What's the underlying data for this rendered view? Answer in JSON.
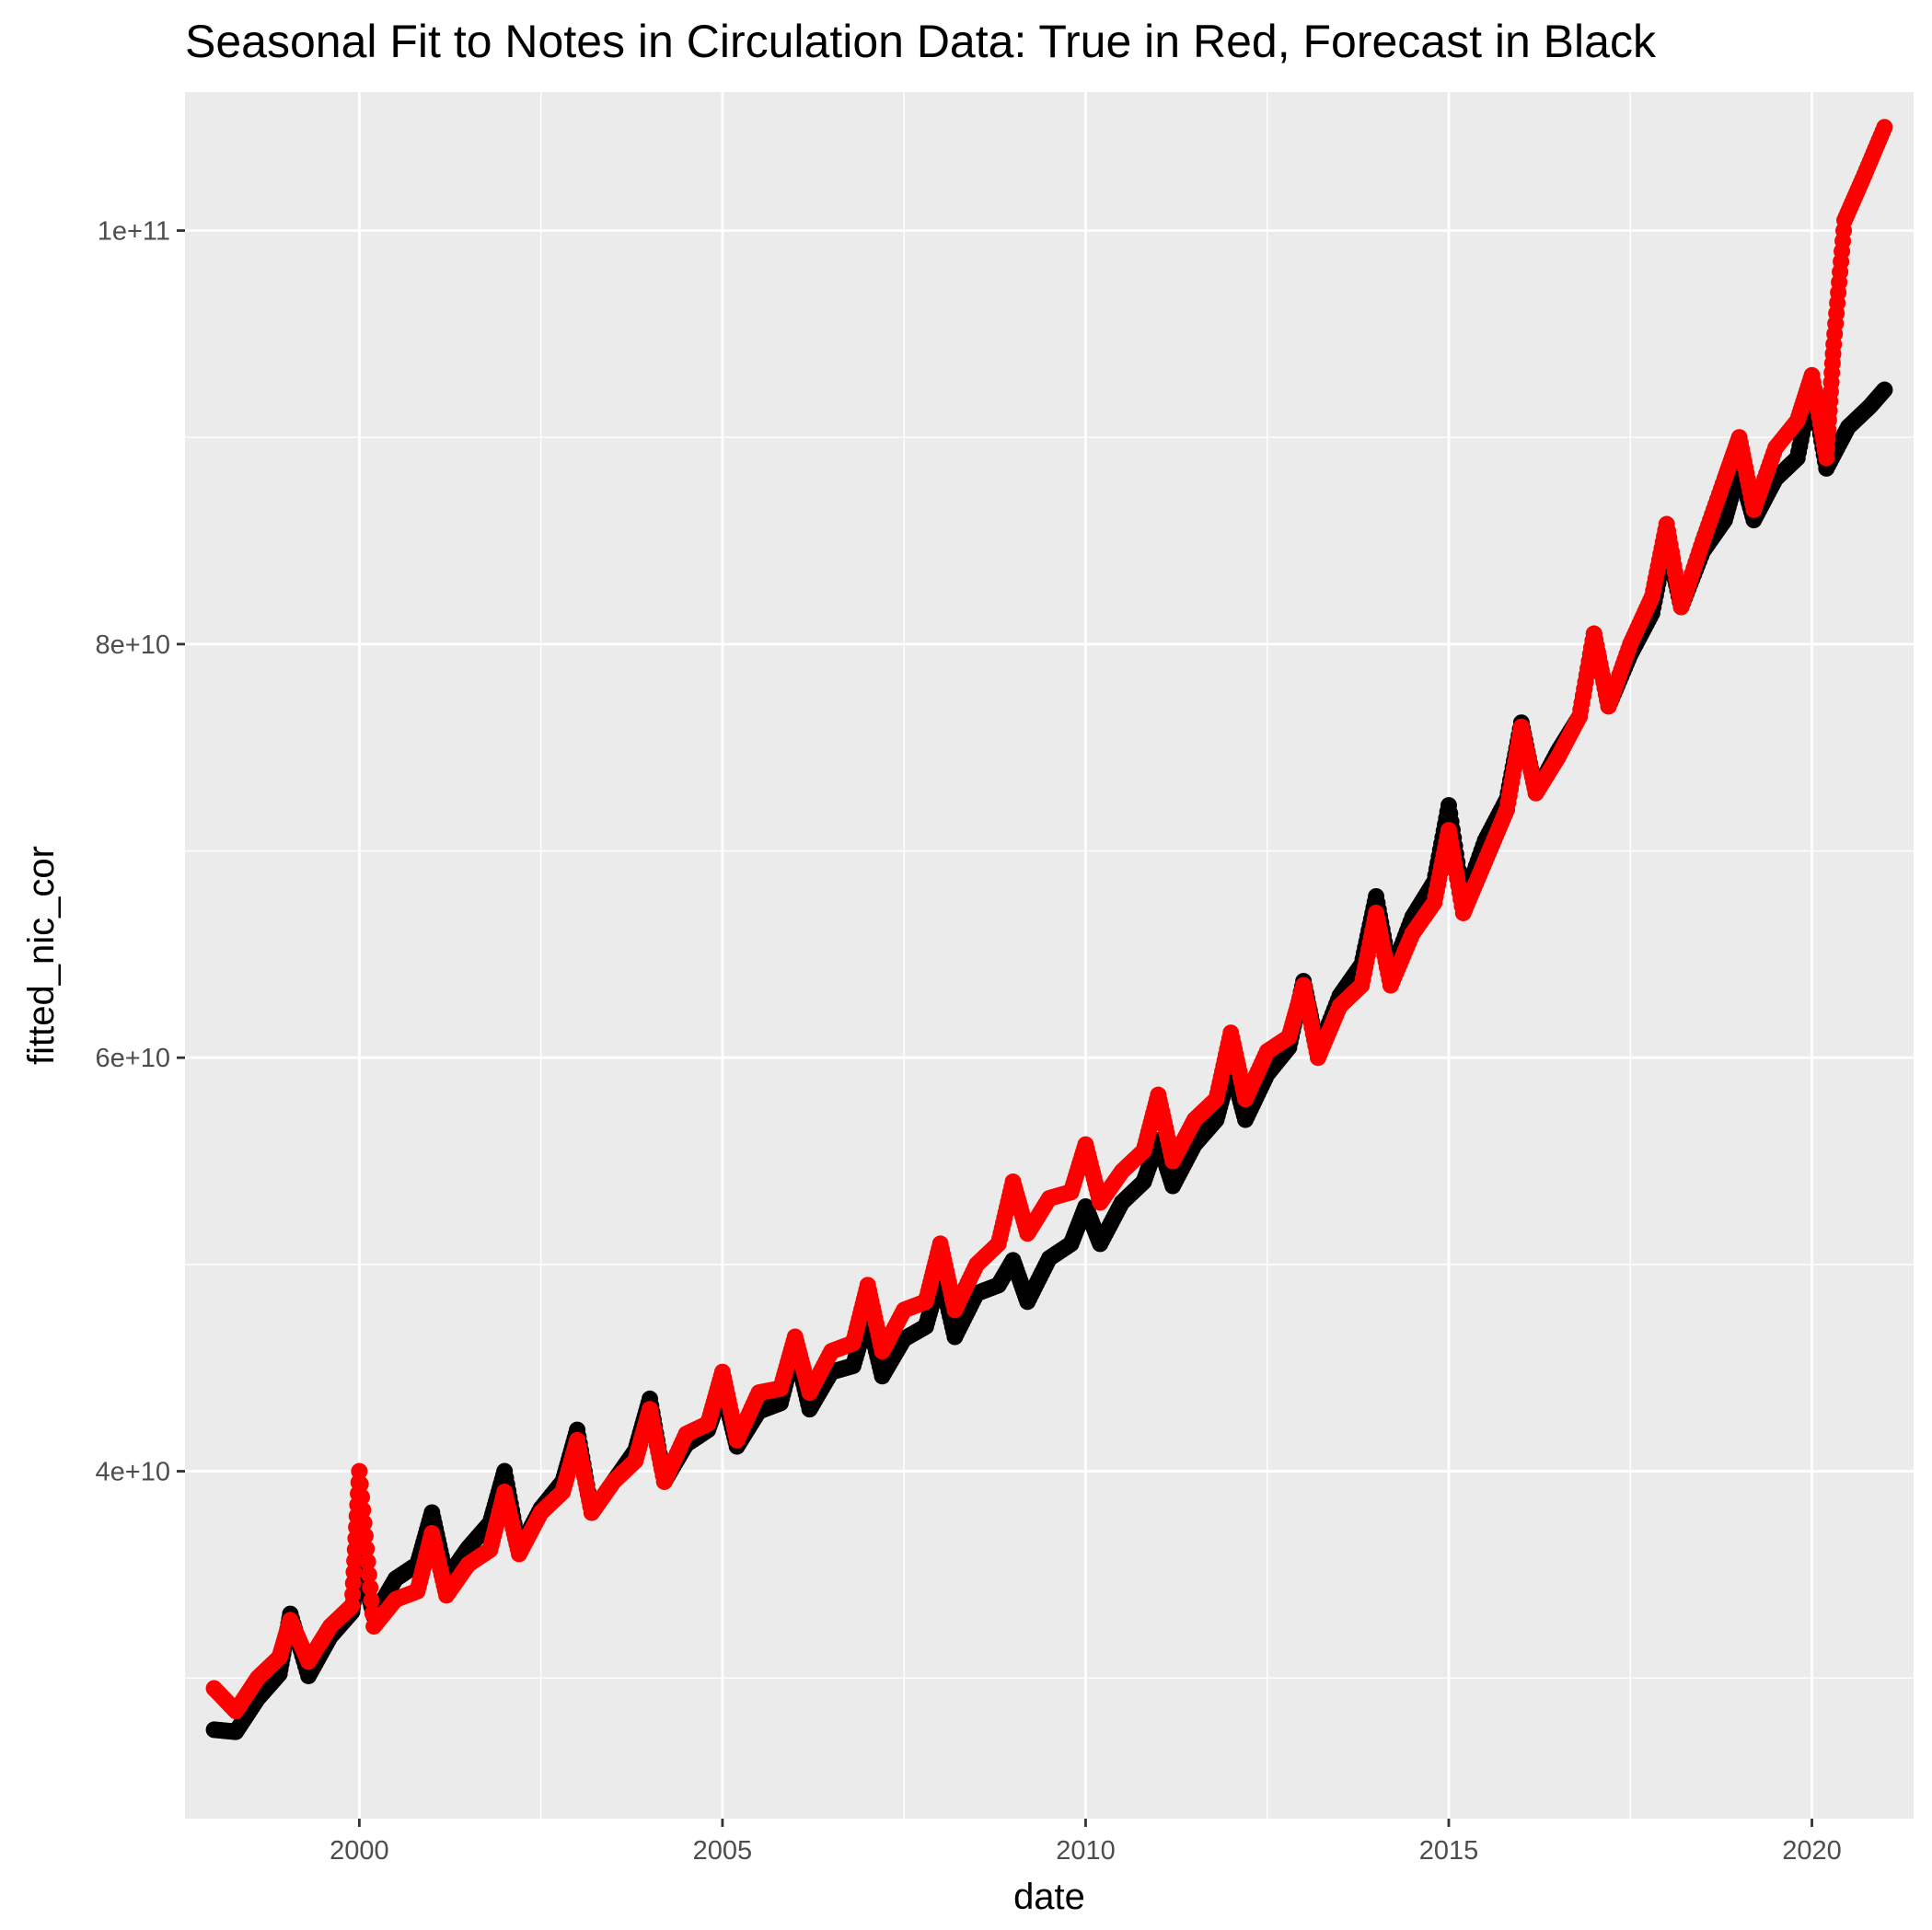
{
  "chart_data": {
    "type": "scatter",
    "title": "Seasonal Fit to Notes in Circulation Data: True in Red, Forecast in Black",
    "xlabel": "date",
    "ylabel": "fitted_nic_cor",
    "x_tick_labels": [
      "2000",
      "2005",
      "2010",
      "2015",
      "2020"
    ],
    "x_ticks": [
      2000,
      2005,
      2010,
      2015,
      2020
    ],
    "y_tick_labels": [
      "4e+10",
      "6e+10",
      "8e+10",
      "1e+11"
    ],
    "y_ticks": [
      40000000000,
      60000000000,
      80000000000,
      100000000000
    ],
    "xlim": [
      1997.6,
      2021.4
    ],
    "ylim": [
      23200000000,
      106700000000
    ],
    "grid": true,
    "legend": "none",
    "background_color": "#ebebeb",
    "grid_color": "#ffffff",
    "series": [
      {
        "color": "#000000",
        "points": [
          [
            1998.0,
            27500000000.0
          ],
          [
            1998.3,
            27400000000.0
          ],
          [
            1998.6,
            29000000000.0
          ],
          [
            1998.9,
            30200000000.0
          ],
          [
            1999.05,
            33100000000.0
          ],
          [
            1999.3,
            30100000000.0
          ],
          [
            1999.6,
            32000000000.0
          ],
          [
            1999.9,
            33200000000.0
          ],
          [
            2000.0,
            35800000000.0
          ],
          [
            2000.2,
            33000000000.0
          ],
          [
            2000.5,
            34800000000.0
          ],
          [
            2000.8,
            35500000000.0
          ],
          [
            2001.0,
            38000000000.0
          ],
          [
            2001.2,
            34800000000.0
          ],
          [
            2001.5,
            36300000000.0
          ],
          [
            2001.8,
            37500000000.0
          ],
          [
            2002.0,
            40000000000.0
          ],
          [
            2002.2,
            36200000000.0
          ],
          [
            2002.5,
            38200000000.0
          ],
          [
            2002.8,
            39500000000.0
          ],
          [
            2003.0,
            42000000000.0
          ],
          [
            2003.2,
            38000000000.0
          ],
          [
            2003.5,
            39500000000.0
          ],
          [
            2003.8,
            41000000000.0
          ],
          [
            2004.0,
            43500000000.0
          ],
          [
            2004.2,
            39500000000.0
          ],
          [
            2004.5,
            41300000000.0
          ],
          [
            2004.8,
            42000000000.0
          ],
          [
            2005.0,
            44000000000.0
          ],
          [
            2005.2,
            41200000000.0
          ],
          [
            2005.5,
            42900000000.0
          ],
          [
            2005.8,
            43300000000.0
          ],
          [
            2006.0,
            46000000000.0
          ],
          [
            2006.2,
            43000000000.0
          ],
          [
            2006.5,
            44800000000.0
          ],
          [
            2006.8,
            45100000000.0
          ],
          [
            2007.0,
            47500000000.0
          ],
          [
            2007.2,
            44600000000.0
          ],
          [
            2007.5,
            46400000000.0
          ],
          [
            2007.8,
            47000000000.0
          ],
          [
            2008.0,
            49500000000.0
          ],
          [
            2008.2,
            46500000000.0
          ],
          [
            2008.5,
            48600000000.0
          ],
          [
            2008.8,
            49000000000.0
          ],
          [
            2009.0,
            50200000000.0
          ],
          [
            2009.2,
            48200000000.0
          ],
          [
            2009.5,
            50300000000.0
          ],
          [
            2009.8,
            51000000000.0
          ],
          [
            2010.0,
            52800000000.0
          ],
          [
            2010.2,
            51000000000.0
          ],
          [
            2010.5,
            53000000000.0
          ],
          [
            2010.8,
            54000000000.0
          ],
          [
            2011.0,
            56000000000.0
          ],
          [
            2011.2,
            53800000000.0
          ],
          [
            2011.5,
            55800000000.0
          ],
          [
            2011.8,
            57000000000.0
          ],
          [
            2012.0,
            59600000000.0
          ],
          [
            2012.2,
            57000000000.0
          ],
          [
            2012.5,
            59200000000.0
          ],
          [
            2012.8,
            60500000000.0
          ],
          [
            2013.0,
            63700000000.0
          ],
          [
            2013.2,
            60300000000.0
          ],
          [
            2013.5,
            63000000000.0
          ],
          [
            2013.8,
            64500000000.0
          ],
          [
            2014.0,
            67800000000.0
          ],
          [
            2014.2,
            64000000000.0
          ],
          [
            2014.5,
            66800000000.0
          ],
          [
            2014.8,
            68500000000.0
          ],
          [
            2015.0,
            72200000000.0
          ],
          [
            2015.2,
            67500000000.0
          ],
          [
            2015.5,
            70500000000.0
          ],
          [
            2015.8,
            72500000000.0
          ],
          [
            2016.0,
            76200000000.0
          ],
          [
            2016.2,
            72800000000.0
          ],
          [
            2016.5,
            74800000000.0
          ],
          [
            2016.8,
            76500000000.0
          ],
          [
            2017.0,
            80500000000.0
          ],
          [
            2017.2,
            77000000000.0
          ],
          [
            2017.5,
            79500000000.0
          ],
          [
            2017.8,
            81500000000.0
          ],
          [
            2018.0,
            85000000000.0
          ],
          [
            2018.2,
            81800000000.0
          ],
          [
            2018.5,
            84500000000.0
          ],
          [
            2018.8,
            86000000000.0
          ],
          [
            2019.0,
            88500000000.0
          ],
          [
            2019.2,
            86000000000.0
          ],
          [
            2019.5,
            88000000000.0
          ],
          [
            2019.8,
            89000000000.0
          ],
          [
            2020.0,
            92500000000.0
          ],
          [
            2020.2,
            88500000000.0
          ],
          [
            2020.5,
            90500000000.0
          ],
          [
            2020.8,
            91500000000.0
          ],
          [
            2021.0,
            92300000000.0
          ]
        ]
      },
      {
        "color": "#ff0000",
        "points": [
          [
            1998.0,
            29500000000.0
          ],
          [
            1998.3,
            28400000000.0
          ],
          [
            1998.6,
            30000000000.0
          ],
          [
            1998.9,
            31000000000.0
          ],
          [
            1999.05,
            32800000000.0
          ],
          [
            1999.3,
            30800000000.0
          ],
          [
            1999.6,
            32500000000.0
          ],
          [
            1999.9,
            33500000000.0
          ],
          [
            2000.0,
            40000000000.0
          ],
          [
            2000.2,
            32500000000.0
          ],
          [
            2000.5,
            33800000000.0
          ],
          [
            2000.8,
            34200000000.0
          ],
          [
            2001.0,
            37000000000.0
          ],
          [
            2001.2,
            34000000000.0
          ],
          [
            2001.5,
            35500000000.0
          ],
          [
            2001.8,
            36200000000.0
          ],
          [
            2002.0,
            39000000000.0
          ],
          [
            2002.2,
            36000000000.0
          ],
          [
            2002.5,
            38000000000.0
          ],
          [
            2002.8,
            39000000000.0
          ],
          [
            2003.0,
            41500000000.0
          ],
          [
            2003.2,
            38000000000.0
          ],
          [
            2003.5,
            39500000000.0
          ],
          [
            2003.8,
            40500000000.0
          ],
          [
            2004.0,
            43000000000.0
          ],
          [
            2004.2,
            39500000000.0
          ],
          [
            2004.5,
            41800000000.0
          ],
          [
            2004.8,
            42300000000.0
          ],
          [
            2005.0,
            44800000000.0
          ],
          [
            2005.2,
            41500000000.0
          ],
          [
            2005.5,
            43800000000.0
          ],
          [
            2005.8,
            44000000000.0
          ],
          [
            2006.0,
            46500000000.0
          ],
          [
            2006.2,
            43800000000.0
          ],
          [
            2006.5,
            45800000000.0
          ],
          [
            2006.8,
            46200000000.0
          ],
          [
            2007.0,
            49000000000.0
          ],
          [
            2007.2,
            45800000000.0
          ],
          [
            2007.5,
            47800000000.0
          ],
          [
            2007.8,
            48200000000.0
          ],
          [
            2008.0,
            51000000000.0
          ],
          [
            2008.2,
            47800000000.0
          ],
          [
            2008.5,
            50000000000.0
          ],
          [
            2008.8,
            51000000000.0
          ],
          [
            2009.0,
            54000000000.0
          ],
          [
            2009.2,
            51500000000.0
          ],
          [
            2009.5,
            53200000000.0
          ],
          [
            2009.8,
            53500000000.0
          ],
          [
            2010.0,
            55800000000.0
          ],
          [
            2010.2,
            53000000000.0
          ],
          [
            2010.5,
            54500000000.0
          ],
          [
            2010.8,
            55500000000.0
          ],
          [
            2011.0,
            58200000000.0
          ],
          [
            2011.2,
            55000000000.0
          ],
          [
            2011.5,
            57000000000.0
          ],
          [
            2011.8,
            58000000000.0
          ],
          [
            2012.0,
            61200000000.0
          ],
          [
            2012.2,
            58000000000.0
          ],
          [
            2012.5,
            60300000000.0
          ],
          [
            2012.8,
            61000000000.0
          ],
          [
            2013.0,
            63500000000.0
          ],
          [
            2013.2,
            60000000000.0
          ],
          [
            2013.5,
            62500000000.0
          ],
          [
            2013.8,
            63500000000.0
          ],
          [
            2014.0,
            67000000000.0
          ],
          [
            2014.2,
            63500000000.0
          ],
          [
            2014.5,
            66000000000.0
          ],
          [
            2014.8,
            67500000000.0
          ],
          [
            2015.0,
            71000000000.0
          ],
          [
            2015.2,
            67000000000.0
          ],
          [
            2015.5,
            69500000000.0
          ],
          [
            2015.8,
            72000000000.0
          ],
          [
            2016.0,
            76000000000.0
          ],
          [
            2016.2,
            72800000000.0
          ],
          [
            2016.5,
            74500000000.0
          ],
          [
            2016.8,
            76500000000.0
          ],
          [
            2017.0,
            80500000000.0
          ],
          [
            2017.2,
            77000000000.0
          ],
          [
            2017.5,
            80000000000.0
          ],
          [
            2017.8,
            82300000000.0
          ],
          [
            2018.0,
            85800000000.0
          ],
          [
            2018.2,
            81800000000.0
          ],
          [
            2018.5,
            85000000000.0
          ],
          [
            2018.8,
            88000000000.0
          ],
          [
            2019.0,
            90000000000.0
          ],
          [
            2019.2,
            86500000000.0
          ],
          [
            2019.5,
            89500000000.0
          ],
          [
            2019.8,
            90800000000.0
          ],
          [
            2020.0,
            93000000000.0
          ],
          [
            2020.2,
            89000000000.0
          ],
          [
            2020.3,
            94500000000.0
          ],
          [
            2020.45,
            100500000000.0
          ],
          [
            2020.7,
            102500000000.0
          ],
          [
            2021.0,
            105000000000.0
          ]
        ]
      }
    ]
  }
}
